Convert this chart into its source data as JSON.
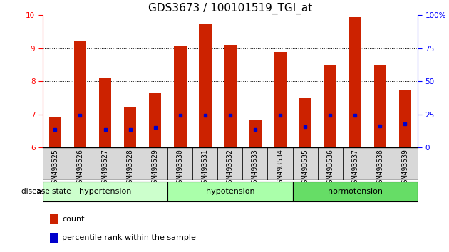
{
  "title": "GDS3673 / 100101519_TGI_at",
  "samples": [
    "GSM493525",
    "GSM493526",
    "GSM493527",
    "GSM493528",
    "GSM493529",
    "GSM493530",
    "GSM493531",
    "GSM493532",
    "GSM493533",
    "GSM493534",
    "GSM493535",
    "GSM493536",
    "GSM493537",
    "GSM493538",
    "GSM493539"
  ],
  "bar_heights": [
    6.93,
    9.22,
    8.1,
    7.2,
    7.65,
    9.05,
    9.72,
    9.1,
    6.85,
    8.88,
    7.5,
    8.48,
    9.95,
    8.5,
    7.75
  ],
  "blue_dot_y": [
    6.55,
    6.98,
    6.55,
    6.55,
    6.6,
    6.98,
    6.98,
    6.98,
    6.55,
    6.98,
    6.62,
    6.98,
    6.98,
    6.65,
    6.72
  ],
  "ylim": [
    6,
    10
  ],
  "yticks_left": [
    6,
    7,
    8,
    9,
    10
  ],
  "yticks_right": [
    0,
    25,
    50,
    75,
    100
  ],
  "bar_color": "#cc2200",
  "dot_color": "#0000cc",
  "group_labels": [
    "hypertension",
    "hypotension",
    "normotension"
  ],
  "group_ranges": [
    [
      0,
      5
    ],
    [
      5,
      10
    ],
    [
      10,
      15
    ]
  ],
  "group_colors": [
    "#ccffcc",
    "#aaffaa",
    "#66dd66"
  ],
  "disease_state_label": "disease state",
  "legend_count": "count",
  "legend_percentile": "percentile rank within the sample",
  "title_fontsize": 11,
  "tick_label_fontsize": 7,
  "bar_width": 0.5
}
